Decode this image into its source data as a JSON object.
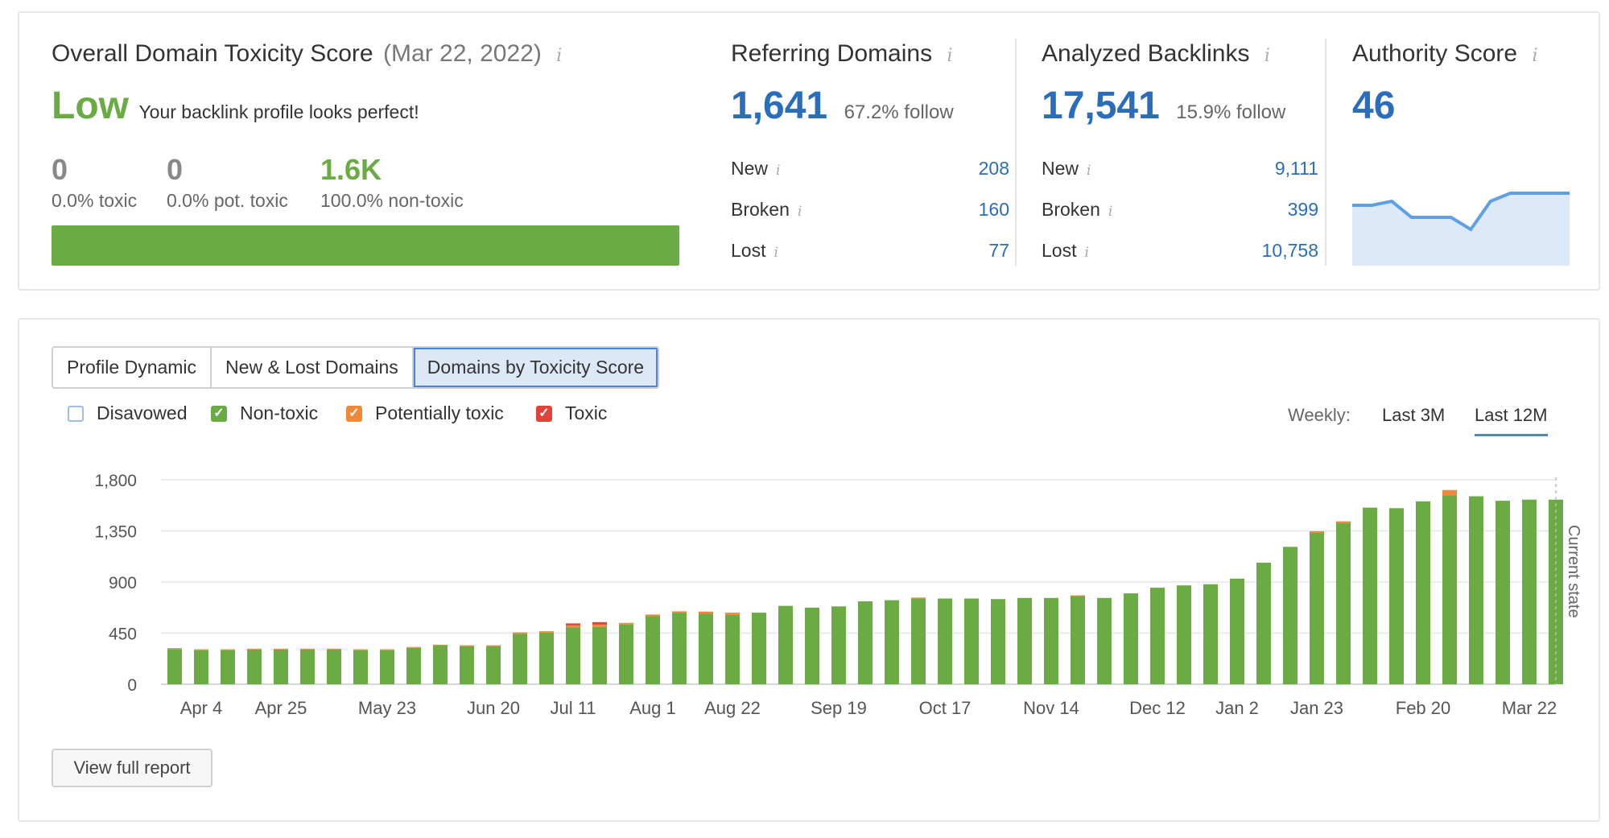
{
  "colors": {
    "blue": "#2a6ebb",
    "green": "#6aab44",
    "orange": "#f0883a",
    "red": "#e0433a",
    "area_fill": "#dbe9f8",
    "area_line": "#5ea0e6"
  },
  "toxicity": {
    "title": "Overall Domain Toxicity Score",
    "date": "(Mar 22, 2022)",
    "level": "Low",
    "message": "Your backlink profile looks perfect!",
    "toxic": {
      "value": "0",
      "label": "0.0% toxic"
    },
    "pot_toxic": {
      "value": "0",
      "label": "0.0% pot. toxic"
    },
    "non_toxic": {
      "value": "1.6K",
      "label": "100.0% non-toxic"
    },
    "bar_non_toxic_fraction": 1.0
  },
  "referring_domains": {
    "title": "Referring Domains",
    "value": "1,641",
    "follow": "67.2% follow",
    "rows": [
      {
        "label": "New",
        "value": "208"
      },
      {
        "label": "Broken",
        "value": "160"
      },
      {
        "label": "Lost",
        "value": "77"
      }
    ]
  },
  "backlinks": {
    "title": "Analyzed Backlinks",
    "value": "17,541",
    "follow": "15.9% follow",
    "rows": [
      {
        "label": "New",
        "value": "9,111"
      },
      {
        "label": "Broken",
        "value": "399"
      },
      {
        "label": "Lost",
        "value": "10,758"
      }
    ]
  },
  "authority": {
    "title": "Authority Score",
    "value": "46",
    "trend": [
      45,
      45,
      46,
      42,
      42,
      42,
      39,
      46,
      48,
      48,
      48,
      48
    ]
  },
  "tabs": [
    "Profile Dynamic",
    "New & Lost Domains",
    "Domains by Toxicity Score"
  ],
  "active_tab": "Domains by Toxicity Score",
  "legend": {
    "disavowed": "Disavowed",
    "non_toxic": "Non-toxic",
    "potentially_toxic": "Potentially toxic",
    "toxic": "Toxic"
  },
  "period": {
    "label": "Weekly:",
    "options": [
      "Last 3M",
      "Last 12M"
    ],
    "selected": "Last 12M"
  },
  "current_state_label": "Current state",
  "view_full_report": "View full report",
  "chart_data": {
    "type": "bar",
    "stacked": true,
    "ylim": [
      0,
      1800
    ],
    "yticks": [
      "0",
      "450",
      "900",
      "1,350",
      "1,800"
    ],
    "ytick_values": [
      0,
      450,
      900,
      1350,
      1800
    ],
    "grid": true,
    "xtick_labels": [
      {
        "index": 1,
        "label": "Apr 4"
      },
      {
        "index": 4,
        "label": "Apr 25"
      },
      {
        "index": 8,
        "label": "May 23"
      },
      {
        "index": 12,
        "label": "Jun 20"
      },
      {
        "index": 15,
        "label": "Jul 11"
      },
      {
        "index": 18,
        "label": "Aug 1"
      },
      {
        "index": 21,
        "label": "Aug 22"
      },
      {
        "index": 25,
        "label": "Sep 19"
      },
      {
        "index": 29,
        "label": "Oct 17"
      },
      {
        "index": 33,
        "label": "Nov 14"
      },
      {
        "index": 37,
        "label": "Dec 12"
      },
      {
        "index": 40,
        "label": "Jan 2"
      },
      {
        "index": 43,
        "label": "Jan 23"
      },
      {
        "index": 47,
        "label": "Feb 20"
      },
      {
        "index": 51,
        "label": "Mar 22"
      }
    ],
    "series": [
      {
        "name": "Non-toxic",
        "color": "#6aab44",
        "values": [
          310,
          300,
          300,
          305,
          305,
          305,
          305,
          300,
          300,
          320,
          340,
          335,
          335,
          445,
          455,
          500,
          505,
          525,
          600,
          630,
          620,
          610,
          630,
          690,
          675,
          685,
          730,
          740,
          755,
          755,
          755,
          750,
          760,
          760,
          775,
          760,
          800,
          850,
          870,
          880,
          930,
          1070,
          1210,
          1335,
          1420,
          1555,
          1550,
          1610,
          1665,
          1655,
          1615,
          1625,
          1625
        ]
      },
      {
        "name": "Potentially toxic",
        "color": "#f0883a",
        "values": [
          8,
          8,
          8,
          8,
          8,
          8,
          8,
          8,
          8,
          8,
          8,
          8,
          8,
          12,
          12,
          18,
          20,
          15,
          14,
          12,
          20,
          20,
          0,
          0,
          0,
          0,
          0,
          0,
          8,
          0,
          0,
          0,
          0,
          0,
          8,
          0,
          0,
          0,
          0,
          0,
          0,
          0,
          0,
          12,
          14,
          0,
          0,
          0,
          45,
          0,
          0,
          0,
          0
        ]
      },
      {
        "name": "Toxic",
        "color": "#e0433a",
        "values": [
          0,
          0,
          0,
          0,
          0,
          0,
          0,
          0,
          0,
          0,
          0,
          0,
          0,
          0,
          0,
          18,
          22,
          0,
          0,
          0,
          0,
          0,
          0,
          0,
          0,
          0,
          0,
          0,
          0,
          0,
          0,
          0,
          0,
          0,
          0,
          0,
          0,
          0,
          0,
          0,
          0,
          0,
          0,
          0,
          0,
          0,
          0,
          0,
          0,
          0,
          0,
          0,
          0
        ]
      }
    ]
  }
}
